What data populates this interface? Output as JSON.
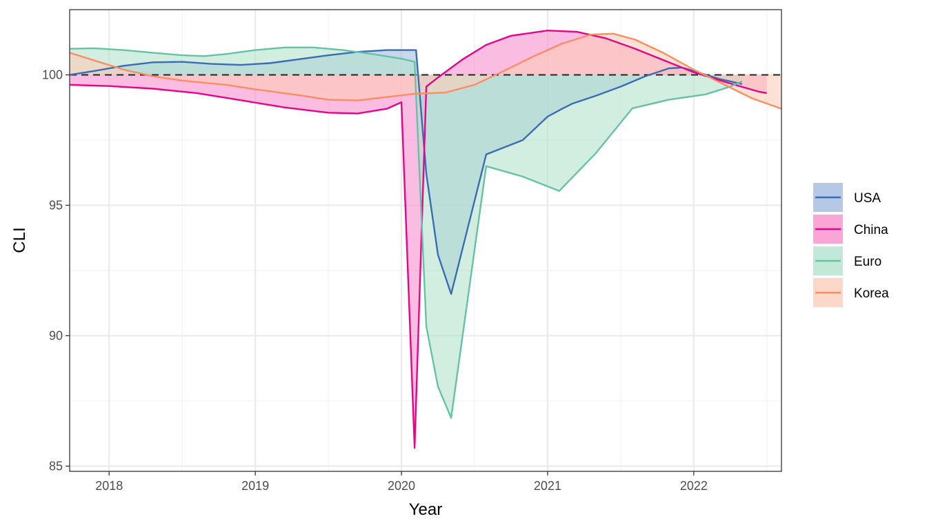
{
  "chart_data": {
    "type": "area",
    "xlabel": "Year",
    "ylabel": "CLI",
    "xlim": [
      2017.73,
      2022.6
    ],
    "ylim": [
      84.8,
      102.5
    ],
    "baseline": 100,
    "grid": true,
    "legend_position": "right",
    "x_ticks": [
      {
        "value": 2018,
        "label": "2018"
      },
      {
        "value": 2019,
        "label": "2019"
      },
      {
        "value": 2020,
        "label": "2020"
      },
      {
        "value": 2021,
        "label": "2021"
      },
      {
        "value": 2022,
        "label": "2022"
      }
    ],
    "y_ticks": [
      {
        "value": 85,
        "label": "85"
      },
      {
        "value": 90,
        "label": "90"
      },
      {
        "value": 95,
        "label": "95"
      },
      {
        "value": 100,
        "label": "100"
      }
    ],
    "series": [
      {
        "name": "USA",
        "color": "#3A6BB5",
        "fill": "#A3BCE0",
        "points": [
          [
            2017.73,
            100.0
          ],
          [
            2017.9,
            100.15
          ],
          [
            2018.1,
            100.35
          ],
          [
            2018.3,
            100.48
          ],
          [
            2018.5,
            100.5
          ],
          [
            2018.7,
            100.42
          ],
          [
            2018.9,
            100.38
          ],
          [
            2019.1,
            100.45
          ],
          [
            2019.3,
            100.6
          ],
          [
            2019.5,
            100.75
          ],
          [
            2019.7,
            100.88
          ],
          [
            2019.9,
            100.95
          ],
          [
            2020.1,
            100.95
          ],
          [
            2020.17,
            96.2
          ],
          [
            2020.25,
            93.1
          ],
          [
            2020.34,
            91.6
          ],
          [
            2020.58,
            96.95
          ],
          [
            2020.83,
            97.5
          ],
          [
            2021.0,
            98.4
          ],
          [
            2021.1,
            98.7
          ],
          [
            2021.17,
            98.9
          ],
          [
            2021.33,
            99.2
          ],
          [
            2021.5,
            99.55
          ],
          [
            2021.67,
            99.95
          ],
          [
            2021.83,
            100.25
          ],
          [
            2021.92,
            100.28
          ],
          [
            2022.0,
            100.15
          ],
          [
            2022.17,
            99.85
          ],
          [
            2022.33,
            99.65
          ]
        ]
      },
      {
        "name": "China",
        "color": "#E7048B",
        "fill": "#F78FCB",
        "points": [
          [
            2017.73,
            99.62
          ],
          [
            2018.0,
            99.57
          ],
          [
            2018.3,
            99.47
          ],
          [
            2018.6,
            99.3
          ],
          [
            2018.9,
            99.03
          ],
          [
            2019.2,
            98.75
          ],
          [
            2019.5,
            98.55
          ],
          [
            2019.7,
            98.52
          ],
          [
            2019.9,
            98.7
          ],
          [
            2020.0,
            98.95
          ],
          [
            2020.09,
            85.7
          ],
          [
            2020.17,
            99.55
          ],
          [
            2020.25,
            99.9
          ],
          [
            2020.42,
            100.6
          ],
          [
            2020.58,
            101.15
          ],
          [
            2020.75,
            101.5
          ],
          [
            2021.0,
            101.7
          ],
          [
            2021.2,
            101.65
          ],
          [
            2021.4,
            101.4
          ],
          [
            2021.6,
            101.0
          ],
          [
            2021.8,
            100.55
          ],
          [
            2022.0,
            100.1
          ],
          [
            2022.2,
            99.75
          ],
          [
            2022.45,
            99.35
          ],
          [
            2022.5,
            99.3
          ]
        ]
      },
      {
        "name": "Euro",
        "color": "#66C2A5",
        "fill": "#B3E2CD",
        "points": [
          [
            2017.73,
            101.0
          ],
          [
            2017.9,
            101.02
          ],
          [
            2018.1,
            100.95
          ],
          [
            2018.3,
            100.85
          ],
          [
            2018.5,
            100.75
          ],
          [
            2018.65,
            100.72
          ],
          [
            2018.8,
            100.8
          ],
          [
            2019.0,
            100.95
          ],
          [
            2019.2,
            101.05
          ],
          [
            2019.4,
            101.05
          ],
          [
            2019.6,
            100.95
          ],
          [
            2019.8,
            100.8
          ],
          [
            2020.0,
            100.62
          ],
          [
            2020.09,
            100.5
          ],
          [
            2020.17,
            90.35
          ],
          [
            2020.25,
            88.05
          ],
          [
            2020.34,
            86.85
          ],
          [
            2020.58,
            96.5
          ],
          [
            2020.83,
            96.1
          ],
          [
            2021.08,
            95.55
          ],
          [
            2021.33,
            97.0
          ],
          [
            2021.58,
            98.72
          ],
          [
            2021.83,
            99.05
          ],
          [
            2022.08,
            99.25
          ],
          [
            2022.25,
            99.55
          ],
          [
            2022.33,
            99.75
          ]
        ]
      },
      {
        "name": "Korea",
        "color": "#FC8D62",
        "fill": "#FDCDB9",
        "points": [
          [
            2017.73,
            100.85
          ],
          [
            2017.9,
            100.55
          ],
          [
            2018.1,
            100.2
          ],
          [
            2018.3,
            99.95
          ],
          [
            2018.5,
            99.78
          ],
          [
            2018.8,
            99.62
          ],
          [
            2019.0,
            99.45
          ],
          [
            2019.3,
            99.22
          ],
          [
            2019.5,
            99.05
          ],
          [
            2019.7,
            99.02
          ],
          [
            2019.9,
            99.15
          ],
          [
            2020.1,
            99.28
          ],
          [
            2020.3,
            99.32
          ],
          [
            2020.5,
            99.62
          ],
          [
            2020.7,
            100.15
          ],
          [
            2020.9,
            100.7
          ],
          [
            2021.1,
            101.2
          ],
          [
            2021.3,
            101.55
          ],
          [
            2021.45,
            101.58
          ],
          [
            2021.6,
            101.35
          ],
          [
            2021.8,
            100.82
          ],
          [
            2022.0,
            100.2
          ],
          [
            2022.2,
            99.65
          ],
          [
            2022.4,
            99.1
          ],
          [
            2022.6,
            98.7
          ]
        ]
      }
    ]
  }
}
